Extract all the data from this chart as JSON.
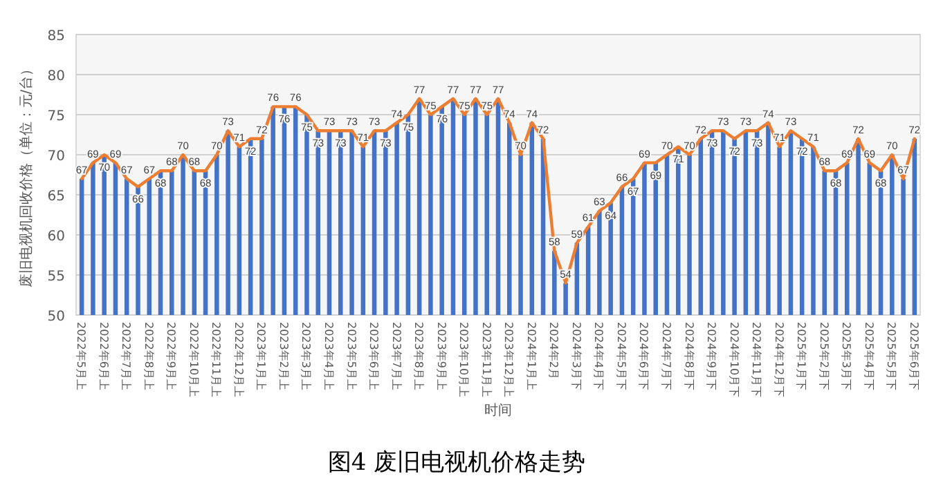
{
  "chart_data": {
    "type": "bar",
    "title": "图4  废旧电视机价格走势",
    "xlabel": "时间",
    "ylabel": "废旧电视机回收价格（单位：元/台）",
    "categories": [
      "2022年5月上",
      null,
      "2022年6月上",
      null,
      "2022年7月上",
      null,
      "2022年8月上",
      null,
      "2022年9月上",
      null,
      "2022年10月上",
      null,
      "2022年11月上",
      null,
      "2022年12月上",
      null,
      "2023年1月上",
      null,
      "2023年2月上",
      null,
      "2023年3月上",
      null,
      "2023年4月上",
      null,
      "2023年5月上",
      null,
      "2023年6月上",
      null,
      "2023年7月上",
      null,
      "2023年8月上",
      null,
      "2023年9月上",
      null,
      "2023年10月上",
      null,
      "2023年11月上",
      null,
      "2023年12月上",
      null,
      "2024年1月上",
      null,
      "2024年2月",
      null,
      "2024年3月下",
      null,
      "2024年4月下",
      null,
      "2024年5月下",
      null,
      "2024年6月下",
      null,
      "2024年7月下",
      null,
      "2024年8月下",
      null,
      "2024年9月下",
      null,
      "2024年10月下",
      null,
      "2024年11月下",
      null,
      "2024年12月下",
      null,
      "2025年1月下",
      null,
      "2025年2月下",
      null,
      "2025年3月下",
      null,
      "2025年4月下",
      null,
      "2025年5月下",
      null,
      "2025年6月下"
    ],
    "series": [
      {
        "color": "#4472c4",
        "values": [
          67,
          69,
          70,
          69,
          67,
          66,
          67,
          68,
          68,
          70,
          68,
          68,
          70,
          73,
          71,
          72,
          72,
          76,
          76,
          76,
          75,
          73,
          73,
          73,
          73,
          71,
          73,
          73,
          74,
          75,
          77,
          75,
          76,
          77,
          75,
          77,
          75,
          77,
          74,
          70,
          74,
          72,
          58,
          54,
          59,
          61,
          63,
          64,
          66,
          67,
          69,
          69,
          70,
          71,
          70,
          72,
          73,
          73,
          72,
          73,
          73,
          74,
          71,
          73,
          72,
          71,
          68,
          68,
          69,
          72,
          69,
          68,
          70,
          67,
          72
        ]
      },
      {
        "type": "line",
        "color": "#ed7d31",
        "values": [
          67,
          69,
          70,
          69,
          67,
          66,
          67,
          68,
          68,
          70,
          68,
          68,
          70,
          73,
          71,
          72,
          72,
          76,
          76,
          76,
          75,
          73,
          73,
          73,
          73,
          71,
          73,
          73,
          74,
          75,
          77,
          75,
          76,
          77,
          75,
          77,
          75,
          77,
          74,
          70,
          74,
          72,
          58,
          54,
          59,
          61,
          63,
          64,
          66,
          67,
          69,
          69,
          70,
          71,
          70,
          72,
          73,
          73,
          72,
          73,
          73,
          74,
          71,
          73,
          72,
          71,
          68,
          68,
          69,
          72,
          69,
          68,
          70,
          67,
          72
        ],
        "value_labels": [
          "67",
          "69",
          "70",
          "69",
          "67",
          "66",
          "67",
          "68",
          "68",
          "70",
          "68",
          "68",
          "70",
          "73",
          "71",
          "72",
          "72",
          "76",
          "76",
          "76",
          "75",
          "73",
          "73",
          "73",
          "73",
          "71",
          "73",
          "73",
          "74",
          "75",
          "77",
          "75",
          "76",
          "77",
          "75",
          "77",
          "75",
          "77",
          "74",
          "70",
          "74",
          "72",
          "58",
          "54",
          "59",
          "61",
          "63",
          "64",
          "66",
          "67",
          "69",
          "69",
          "70",
          "71",
          "70",
          "72",
          "73",
          "73",
          "72",
          "73",
          "73",
          "74",
          "71",
          "73",
          "72",
          "71",
          "68",
          "68",
          "69",
          "72",
          "69",
          "68",
          "70",
          "67",
          "72"
        ]
      }
    ],
    "ylim": [
      50,
      85
    ],
    "yticks": [
      50,
      55,
      60,
      65,
      70,
      75,
      80,
      85
    ],
    "grid": "y"
  }
}
